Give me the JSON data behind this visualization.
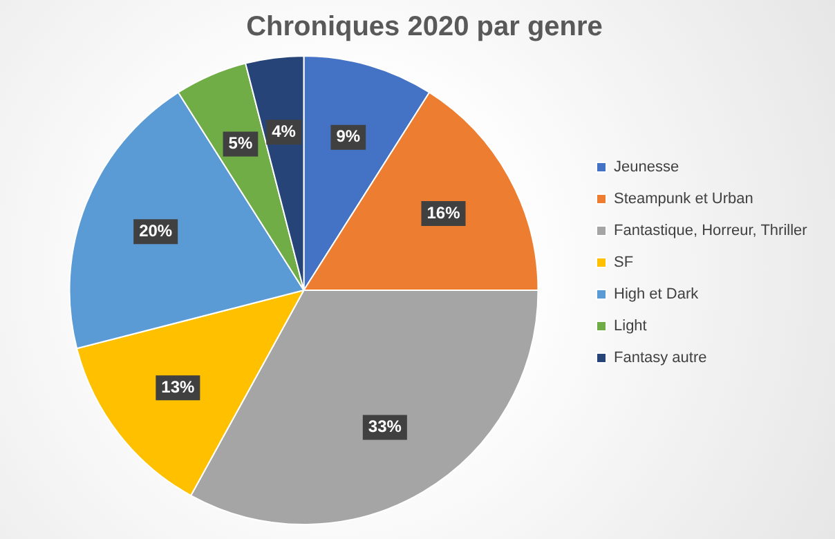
{
  "chart_data": {
    "type": "pie",
    "title": "Chroniques 2020 par genre",
    "categories": [
      "Jeunesse",
      "Steampunk et Urban",
      "Fantastique, Horreur, Thriller",
      "SF",
      "High et Dark",
      "Light",
      "Fantasy autre"
    ],
    "values": [
      9,
      16,
      33,
      13,
      20,
      5,
      4
    ],
    "value_labels": [
      "9%",
      "16%",
      "33%",
      "13%",
      "20%",
      "5%",
      "4%"
    ],
    "colors": [
      "#4472c4",
      "#ed7d31",
      "#a5a5a5",
      "#ffc000",
      "#5b9bd5",
      "#70ad47",
      "#264478"
    ],
    "legend": "right"
  }
}
